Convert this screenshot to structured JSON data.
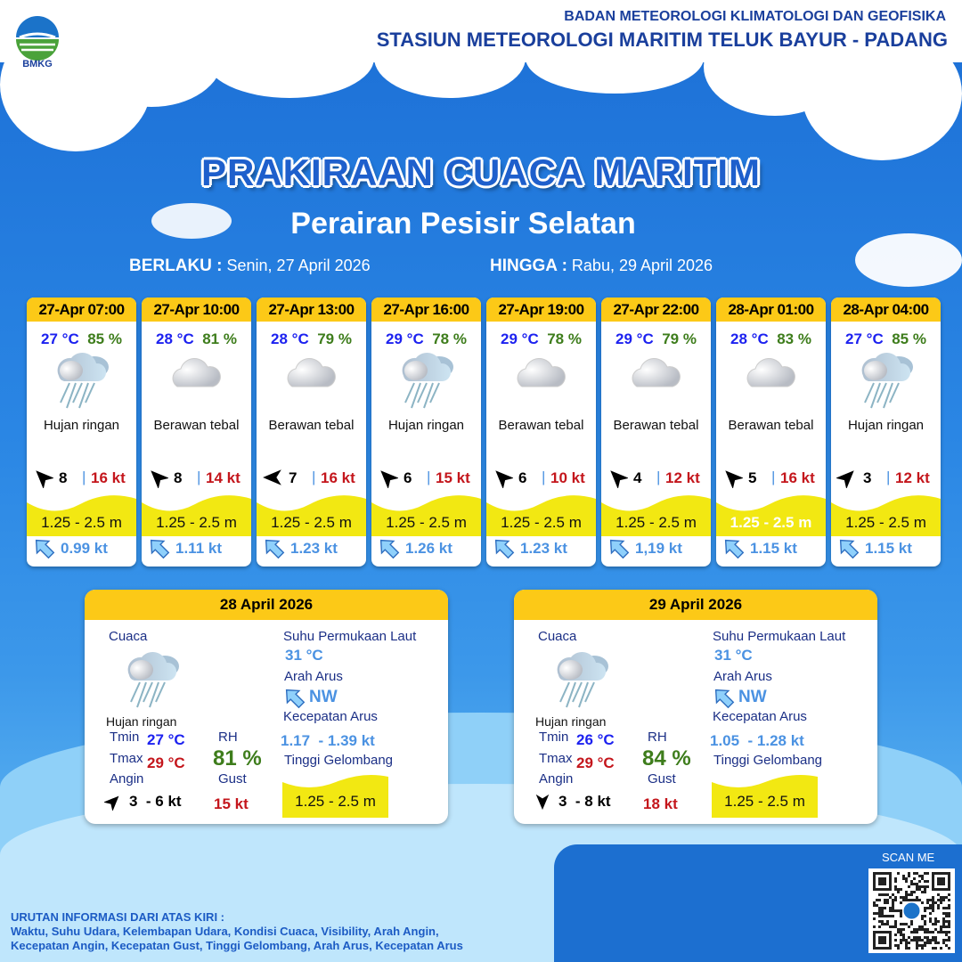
{
  "header": {
    "org": "BADAN METEOROLOGI KLIMATOLOGI DAN GEOFISIKA",
    "station": "STASIUN METEOROLOGI MARITIM TELUK BAYUR - PADANG",
    "logo_text": "BMKG"
  },
  "title": "PRAKIRAAN CUACA MARITIM",
  "subtitle": "Perairan Pesisir Selatan",
  "validity": {
    "from_label": "BERLAKU :",
    "from_value": "Senin, 27 April 2026",
    "to_label": "HINGGA :",
    "to_value": "Rabu, 29 April 2026"
  },
  "colors": {
    "header_yellow": "#fcc917",
    "temp_blue": "#1d22f0",
    "rh_green": "#3e7d1c",
    "gust_red": "#c4161c",
    "current_blue": "#4b92e2",
    "wave_yellow": "#f2e812"
  },
  "cards": [
    {
      "time": "27-Apr 07:00",
      "temp": "27 °C",
      "rh": "85 %",
      "weather": "Hujan ringan",
      "icon": "rain-cloud-icon",
      "wind_dir": "NW",
      "wind": "8",
      "gust": "16 kt",
      "wave": "1.25 - 2.5 m",
      "current": "0.99 kt",
      "current_dir": "NW"
    },
    {
      "time": "27-Apr 10:00",
      "temp": "28 °C",
      "rh": "81 %",
      "weather": "Berawan tebal",
      "icon": "cloud-icon",
      "wind_dir": "NW",
      "wind": "8",
      "gust": "14 kt",
      "wave": "1.25 - 2.5 m",
      "current": "1.11 kt",
      "current_dir": "NW"
    },
    {
      "time": "27-Apr 13:00",
      "temp": "28 °C",
      "rh": "79 %",
      "weather": "Berawan tebal",
      "icon": "cloud-icon",
      "wind_dir": "W",
      "wind": "7",
      "gust": "16 kt",
      "wave": "1.25 - 2.5 m",
      "current": "1.23 kt",
      "current_dir": "NW"
    },
    {
      "time": "27-Apr 16:00",
      "temp": "29 °C",
      "rh": "78 %",
      "weather": "Hujan ringan",
      "icon": "rain-cloud-icon",
      "wind_dir": "NW",
      "wind": "6",
      "gust": "15 kt",
      "wave": "1.25 - 2.5 m",
      "current": "1.26 kt",
      "current_dir": "NW"
    },
    {
      "time": "27-Apr 19:00",
      "temp": "29 °C",
      "rh": "78 %",
      "weather": "Berawan tebal",
      "icon": "cloud-icon",
      "wind_dir": "NW",
      "wind": "6",
      "gust": "10 kt",
      "wave": "1.25 - 2.5 m",
      "current": "1.23 kt",
      "current_dir": "NW"
    },
    {
      "time": "27-Apr 22:00",
      "temp": "29 °C",
      "rh": "79 %",
      "weather": "Berawan tebal",
      "icon": "cloud-icon",
      "wind_dir": "NW",
      "wind": "4",
      "gust": "12 kt",
      "wave": "1.25 - 2.5 m",
      "current": "1,19 kt",
      "current_dir": "NW"
    },
    {
      "time": "28-Apr 01:00",
      "temp": "28 °C",
      "rh": "83 %",
      "weather": "Berawan tebal",
      "icon": "cloud-icon",
      "wind_dir": "NW",
      "wind": "5",
      "gust": "16 kt",
      "wave": "1.25 - 2.5 m",
      "wave_text_color": "#ffffff",
      "current": "1.15 kt",
      "current_dir": "NW"
    },
    {
      "time": "28-Apr 04:00",
      "temp": "27 °C",
      "rh": "85 %",
      "weather": "Hujan ringan",
      "icon": "rain-cloud-icon",
      "wind_dir": "NE",
      "wind": "3",
      "gust": "12 kt",
      "wave": "1.25 - 2.5 m",
      "current": "1.15 kt",
      "current_dir": "NW"
    }
  ],
  "labels": {
    "cuaca": "Cuaca",
    "tmin": "Tmin",
    "tmax": "Tmax",
    "rh": "RH",
    "angin": "Angin",
    "gust": "Gust",
    "sst": "Suhu Permukaan Laut",
    "arah_arus": "Arah Arus",
    "kec_arus": "Kecepatan Arus",
    "tinggi": "Tinggi Gelombang"
  },
  "daily": [
    {
      "date": "28 April 2026",
      "weather": "Hujan ringan",
      "icon": "rain-cloud-icon",
      "tmin": "27 °C",
      "tmax": "29 °C",
      "rh": "81 %",
      "wind_dir": "NE",
      "wind": "3  - 6 kt",
      "gust": "15 kt",
      "sst": "31 °C",
      "current_dir": "NW",
      "current_speed": "1.17  - 1.39 kt",
      "wave": "1.25 - 2.5 m"
    },
    {
      "date": "29 April 2026",
      "weather": "Hujan ringan",
      "icon": "rain-cloud-icon",
      "tmin": "26 °C",
      "tmax": "29 °C",
      "rh": "84 %",
      "wind_dir": "S",
      "wind": "3  - 8 kt",
      "gust": "18 kt",
      "sst": "31 °C",
      "current_dir": "NW",
      "current_speed": "1.05  - 1.28 kt",
      "wave": "1.25 - 2.5 m"
    }
  ],
  "footer": {
    "heading": "URUTAN INFORMASI DARI ATAS KIRI :",
    "line1": "Waktu, Suhu Udara, Kelembapan Udara, Kondisi Cuaca, Visibility, Arah Angin,",
    "line2": "Kecepatan Angin, Kecepatan Gust, Tinggi Gelombang, Arah Arus, Kecepatan Arus"
  },
  "qr": {
    "label": "SCAN ME"
  }
}
